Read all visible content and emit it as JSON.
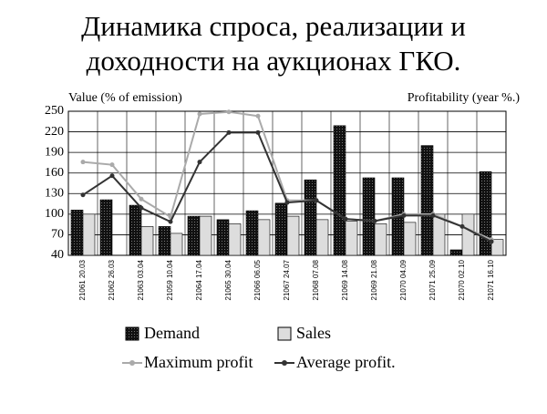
{
  "chart_data": {
    "type": "bar",
    "title": "Динамика спроса, реализации и доходности на аукционах ГКО.",
    "y_label": "Value (% of emission)",
    "y2_label": "Profitability (year %.)",
    "categories": [
      "21061 20.03",
      "21062 26.03",
      "21063 03.04",
      "21059 10.04",
      "21064 17.04",
      "21065 30.04",
      "21066 06.05",
      "21067 24.07",
      "21068 07.08",
      "21069 14.08",
      "21069 21.08",
      "21070 04.09",
      "21071 25.09",
      "21070 02.10",
      "21071 16.10"
    ],
    "series": [
      {
        "name": "Demand",
        "type": "bar",
        "color": "#222222",
        "values": [
          106,
          121,
          113,
          82,
          97,
          92,
          105,
          116,
          150,
          229,
          153,
          153,
          200,
          48,
          162
        ]
      },
      {
        "name": "Sales",
        "type": "bar",
        "color": "#dddddd",
        "values": [
          100,
          null,
          82,
          72,
          97,
          86,
          92,
          97,
          92,
          90,
          86,
          88,
          100,
          100,
          63
        ]
      },
      {
        "name": "Maximum profit",
        "type": "line",
        "color": "#aaaaaa",
        "values": [
          176,
          172,
          122,
          96,
          246,
          249,
          243,
          120,
          120,
          93,
          90,
          100,
          100,
          82,
          63
        ]
      },
      {
        "name": "Average profit.",
        "type": "line",
        "color": "#333333",
        "values": [
          128,
          156,
          109,
          89,
          176,
          219,
          219,
          117,
          120,
          93,
          90,
          98,
          98,
          82,
          60
        ]
      }
    ],
    "ylim": [
      40,
      250
    ],
    "yticks": [
      40,
      70,
      100,
      130,
      160,
      190,
      220,
      250
    ],
    "grid": true
  }
}
